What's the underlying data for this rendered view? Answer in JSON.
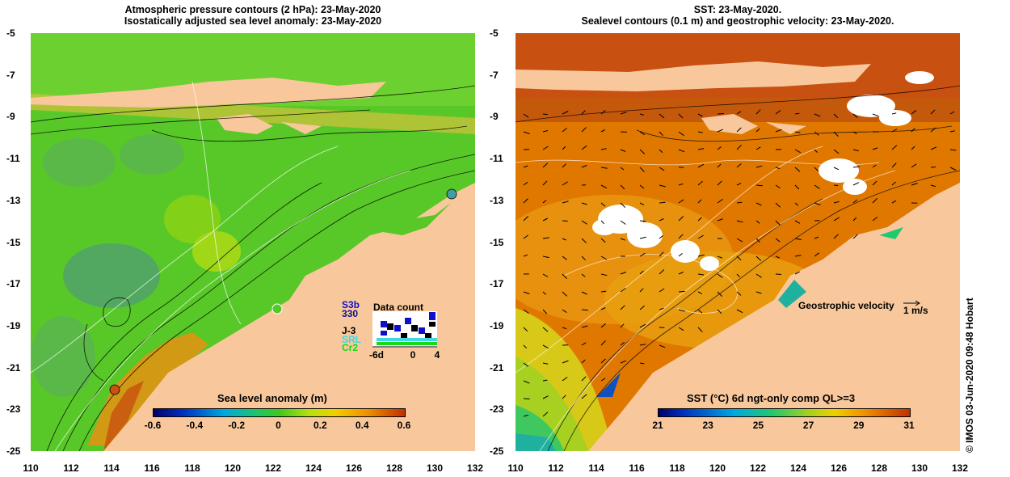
{
  "left_panel": {
    "title_line1": "Atmospheric pressure contours (2 hPa): 23-May-2020",
    "title_line2": "Isostatically adjusted sea level anomaly: 23-May-2020",
    "colorbar": {
      "label": "Sea level anomaly (m)",
      "ticks": [
        "-0.6",
        "-0.4",
        "-0.2",
        "0",
        "0.2",
        "0.4",
        "0.6"
      ]
    },
    "data_count": {
      "title": "Data count",
      "satellites": [
        {
          "name": "S3b",
          "color": "#1010c8"
        },
        {
          "name": "330",
          "color": "#10108a"
        },
        {
          "name": "J-3",
          "color": "#000000"
        },
        {
          "name": "SRL",
          "color": "#40d8e0"
        },
        {
          "name": "Cr2",
          "color": "#18d818"
        }
      ],
      "axis_ticks": [
        "-6d",
        "0",
        "4"
      ]
    }
  },
  "right_panel": {
    "title_line1": "SST: 23-May-2020.",
    "title_line2": "Sealevel contours (0.1 m) and geostrophic velocity: 23-May-2020.",
    "colorbar": {
      "label": "SST (°C) 6d ngt-only comp QL>=3",
      "ticks": [
        "21",
        "23",
        "25",
        "27",
        "29",
        "31"
      ]
    },
    "velocity_legend": {
      "label": "Geostrophic velocity",
      "unit": "1 m/s"
    }
  },
  "axes": {
    "lat_ticks": [
      "-5",
      "-7",
      "-9",
      "-11",
      "-13",
      "-15",
      "-17",
      "-19",
      "-21",
      "-23",
      "-25"
    ],
    "lon_ticks": [
      "110",
      "112",
      "114",
      "116",
      "118",
      "120",
      "122",
      "124",
      "126",
      "128",
      "130",
      "132"
    ]
  },
  "credit": "© IMOS 03-Jun-2020 09:48 Hobart",
  "colors": {
    "land": "#f8c89c",
    "sla_zero": "#40c820",
    "sst_warm": "#e07800",
    "sst_cool": "#18c870"
  }
}
